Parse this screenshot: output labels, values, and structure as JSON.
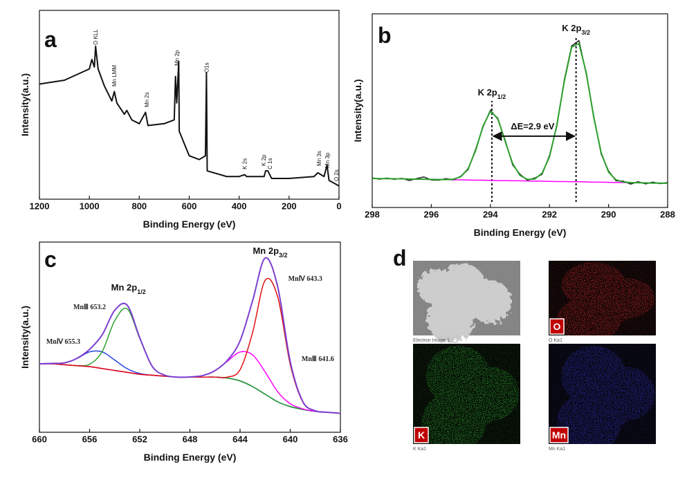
{
  "chart_data": [
    {
      "type": "line",
      "label": "a",
      "xlabel": "Binding Energy (eV)",
      "ylabel": "Intensity(a.u.)",
      "xlim": [
        1200,
        0
      ],
      "ylim": [
        0,
        100
      ],
      "xticks": [
        1200,
        1000,
        800,
        600,
        400,
        200,
        0
      ],
      "x": [
        1200,
        1100,
        1000,
        990,
        980,
        975,
        965,
        940,
        910,
        900,
        890,
        860,
        850,
        830,
        800,
        775,
        765,
        700,
        660,
        655,
        650,
        642,
        640,
        600,
        560,
        535,
        531,
        528,
        450,
        400,
        378,
        370,
        300,
        294,
        285,
        270,
        200,
        100,
        85,
        60,
        48,
        40,
        0
      ],
      "series": [
        {
          "color": "#111111",
          "values": [
            61,
            63,
            69,
            74,
            70,
            81,
            69,
            60,
            52,
            57,
            51,
            45,
            47,
            42,
            40,
            46,
            39,
            40,
            42,
            65,
            51,
            73,
            36,
            23,
            21,
            23,
            67,
            15,
            12,
            12,
            13,
            12,
            12,
            15,
            15,
            11,
            11,
            12,
            14,
            12,
            18,
            10,
            7
          ]
        }
      ],
      "annotations_vertical": true,
      "annotations": [
        {
          "text": "O KLL",
          "x": 975,
          "y": 81.7
        },
        {
          "text": "Mn LMM",
          "x": 900,
          "y": 59.7
        },
        {
          "text": "Mn 2s",
          "x": 770,
          "y": 48.7
        },
        {
          "text": "Mn 2p",
          "x": 650,
          "y": 70.7
        },
        {
          "text": "O1s",
          "x": 530,
          "y": 67
        },
        {
          "text": "K 2s",
          "x": 378,
          "y": 15.8
        },
        {
          "text": "K 2p",
          "x": 302,
          "y": 17.6
        },
        {
          "text": "C 1s",
          "x": 277,
          "y": 15.8
        },
        {
          "text": "Mn 3s",
          "x": 80,
          "y": 17.6
        },
        {
          "text": "Mn 3p",
          "x": 47,
          "y": 16.5
        },
        {
          "text": "O 2s",
          "x": 11,
          "y": 9.5
        }
      ]
    },
    {
      "type": "line",
      "label": "b",
      "xlabel": "Binding Energy (eV)",
      "ylabel": "Intensity(a.u.)",
      "xlim": [
        298,
        288
      ],
      "ylim": [
        0,
        100
      ],
      "xticks": [
        298,
        296,
        294,
        292,
        290,
        288
      ],
      "x": [
        298,
        297.75,
        297.5,
        297.25,
        297,
        296.75,
        296.5,
        296.25,
        296,
        295.75,
        295.5,
        295.25,
        295,
        294.75,
        294.5,
        294.25,
        294,
        293.75,
        293.5,
        293.25,
        293,
        292.75,
        292.5,
        292.25,
        292,
        291.75,
        291.5,
        291.25,
        291,
        290.75,
        290.5,
        290.25,
        290,
        289.75,
        289.5,
        289.25,
        289,
        288.75,
        288.5,
        288.25,
        288
      ],
      "series": [
        {
          "color": "#ff00ff",
          "values": [
            15,
            14.9,
            14.9,
            14.8,
            14.8,
            14.7,
            14.6,
            14.6,
            14.5,
            14.4,
            14.4,
            14.3,
            14.3,
            14.2,
            14.1,
            14.1,
            14,
            13.9,
            13.9,
            13.8,
            13.8,
            13.7,
            13.6,
            13.6,
            13.5,
            13.4,
            13.4,
            13.3,
            13.3,
            13.2,
            13.1,
            13.1,
            13,
            12.9,
            12.9,
            12.8,
            12.8,
            12.7,
            12.6,
            12.6,
            12.5
          ]
        },
        {
          "color": "#222222",
          "values": [
            15.3,
            14.6,
            15.2,
            14.5,
            15.1,
            13.9,
            14.9,
            15.8,
            14.2,
            14.1,
            14.9,
            14.3,
            16.2,
            19.6,
            30.1,
            41.5,
            50.3,
            45.6,
            34.8,
            22.1,
            17.2,
            14.1,
            15.2,
            17.1,
            26.8,
            41.9,
            65.8,
            83.4,
            86.2,
            68.5,
            47.1,
            27.6,
            18.9,
            13.8,
            13.6,
            12.1,
            13.3,
            12.2,
            13.1,
            12.3,
            12.9
          ]
        },
        {
          "color": "#2ca02c",
          "values": [
            15,
            14.9,
            14.9,
            14.8,
            14.8,
            14.7,
            14.6,
            14.6,
            14.5,
            14.4,
            14.4,
            14.6,
            15.9,
            20.1,
            29.4,
            42,
            49.7,
            46.1,
            34.2,
            22.8,
            16.6,
            14.5,
            14.7,
            17.7,
            26.1,
            42.6,
            65,
            82.8,
            84.7,
            69.2,
            46.5,
            28.3,
            18.3,
            14.3,
            13.2,
            12.8,
            12.8,
            12.7,
            12.6,
            12.6,
            12.5
          ]
        }
      ],
      "vlines": [
        293.95,
        291.1
      ],
      "annotations": [
        {
          "text": "K 2p",
          "sub": "1/2",
          "x": 293.95,
          "y": 57.9
        },
        {
          "text": "K 2p",
          "sub": "3/2",
          "x": 291.1,
          "y": 91
        },
        {
          "text": "ΔE=2.9 eV",
          "x": 292.57,
          "y": 40.4,
          "arrow": "double"
        }
      ]
    },
    {
      "type": "line",
      "label": "c",
      "xlabel": "Binding Energy (eV)",
      "ylabel": "Intensity(a.u.)",
      "xlim": [
        660,
        636
      ],
      "ylim": [
        0,
        100
      ],
      "xticks": [
        660,
        656,
        652,
        648,
        644,
        640,
        636
      ],
      "smooth": true,
      "x": [
        660,
        659,
        658,
        657,
        656,
        655,
        654,
        653,
        652,
        651,
        650,
        649,
        648,
        647,
        646,
        645,
        644,
        643,
        642,
        641,
        640,
        639,
        638,
        637,
        636
      ],
      "series": [
        {
          "color": "#1a2a8a",
          "values": [
            36,
            36,
            35.5,
            35,
            34.5,
            33.5,
            32.5,
            31.5,
            30.5,
            30,
            29.5,
            29,
            29,
            29,
            29,
            28.5,
            27,
            24,
            20,
            16,
            13.5,
            12,
            11,
            10.5,
            10
          ]
        },
        {
          "color": "#2040e0",
          "values": [
            36,
            36.2,
            36.5,
            38.8,
            42.3,
            42.3,
            38,
            33.4,
            30.9,
            30,
            29.5,
            29,
            29,
            29,
            29,
            28.5,
            27,
            24,
            20,
            16,
            13.5,
            12,
            11,
            10.5,
            10
          ]
        },
        {
          "color": "#2ca02c",
          "values": [
            36,
            36,
            35.5,
            35.1,
            35.8,
            42.4,
            58.6,
            64.9,
            49.3,
            34.6,
            30,
            29,
            29,
            29,
            29,
            28.5,
            27,
            24,
            20,
            16,
            13.5,
            12,
            11,
            10.5,
            10
          ]
        },
        {
          "color": "#ff00ff",
          "values": [
            36,
            36,
            35.5,
            35,
            34.5,
            33.5,
            32.5,
            31.5,
            30.5,
            30,
            29.5,
            29,
            29.1,
            29.8,
            32.4,
            37.4,
            42.2,
            40.7,
            31.7,
            21.3,
            15,
            12.3,
            11,
            10.5,
            10
          ]
        },
        {
          "color": "#e01010",
          "values": [
            36,
            36,
            35.5,
            35,
            34.5,
            33.5,
            32.5,
            31.5,
            30.5,
            30,
            29.5,
            29,
            29,
            29,
            29,
            29,
            32.9,
            52.5,
            79.9,
            71.2,
            35.7,
            15.9,
            11.3,
            10.5,
            10
          ]
        },
        {
          "color": "#7b3fd0",
          "values": [
            36,
            36.2,
            36.5,
            38.9,
            43.6,
            51.2,
            64.1,
            66.8,
            49.7,
            34.6,
            30,
            29,
            29.1,
            29.8,
            32.4,
            37.9,
            48.1,
            69.2,
            91.6,
            76.5,
            37.2,
            16.2,
            11.3,
            10.5,
            10
          ]
        }
      ],
      "annotations": [
        {
          "text": "Mn 2p",
          "sub": "1/2",
          "x": 652.9,
          "y": 74.5
        },
        {
          "text": "Mn 2p",
          "sub": "3/2",
          "x": 641.6,
          "y": 93.8
        },
        {
          "text": "MnⅢ 653.2",
          "x": 656,
          "y": 64.7,
          "small": true
        },
        {
          "text": "MnⅣ 655.3",
          "x": 658.1,
          "y": 46.5,
          "small": true
        },
        {
          "text": "MnⅣ 643.3",
          "x": 638.8,
          "y": 79.6,
          "small": true
        },
        {
          "text": "MnⅢ 641.6",
          "x": 637.8,
          "y": 37.5,
          "small": true
        }
      ]
    }
  ],
  "panel_d": {
    "label": "d",
    "images": [
      {
        "caption": "Electron Image 1"
      },
      {
        "caption": "O Ka1",
        "element": "O",
        "color": "#e02a2a"
      },
      {
        "caption": "K Ka1",
        "element": "K",
        "color": "#2fb02f"
      },
      {
        "caption": "Mn Ka1",
        "element": "Mn",
        "color": "#3535e0"
      }
    ]
  }
}
